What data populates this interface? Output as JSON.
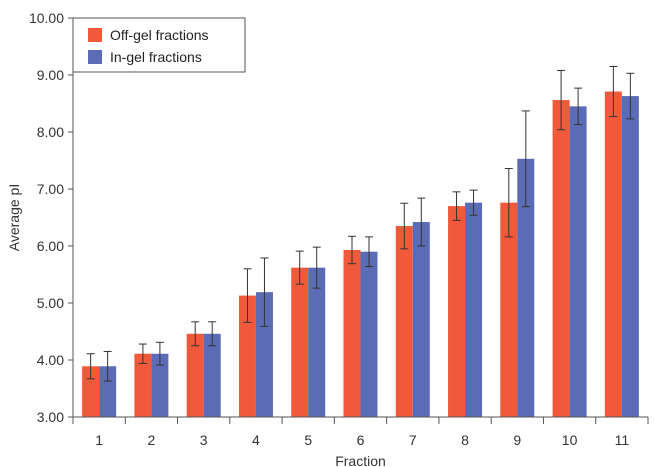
{
  "chart_data": {
    "type": "bar",
    "xlabel": "Fraction",
    "ylabel": "Average pI",
    "ylim": [
      3.0,
      10.0
    ],
    "yticks": [
      "3.00",
      "4.00",
      "5.00",
      "6.00",
      "7.00",
      "8.00",
      "9.00",
      "10.00"
    ],
    "categories": [
      "1",
      "2",
      "3",
      "4",
      "5",
      "6",
      "7",
      "8",
      "9",
      "10",
      "11"
    ],
    "series": [
      {
        "name": "Off-gel fractions",
        "color": "#f05a3a",
        "values": [
          3.89,
          4.11,
          4.46,
          5.13,
          5.62,
          5.93,
          6.35,
          6.7,
          6.76,
          8.56,
          8.71
        ],
        "errors": [
          0.22,
          0.17,
          0.21,
          0.47,
          0.29,
          0.24,
          0.4,
          0.25,
          0.6,
          0.52,
          0.44
        ]
      },
      {
        "name": "In-gel fractions",
        "color": "#5b6bb5",
        "values": [
          3.89,
          4.11,
          4.46,
          5.19,
          5.62,
          5.9,
          6.42,
          6.76,
          7.53,
          8.45,
          8.63
        ],
        "errors": [
          0.26,
          0.2,
          0.21,
          0.6,
          0.36,
          0.26,
          0.42,
          0.22,
          0.84,
          0.32,
          0.4
        ]
      }
    ],
    "legend": "top-left",
    "grid": false
  }
}
